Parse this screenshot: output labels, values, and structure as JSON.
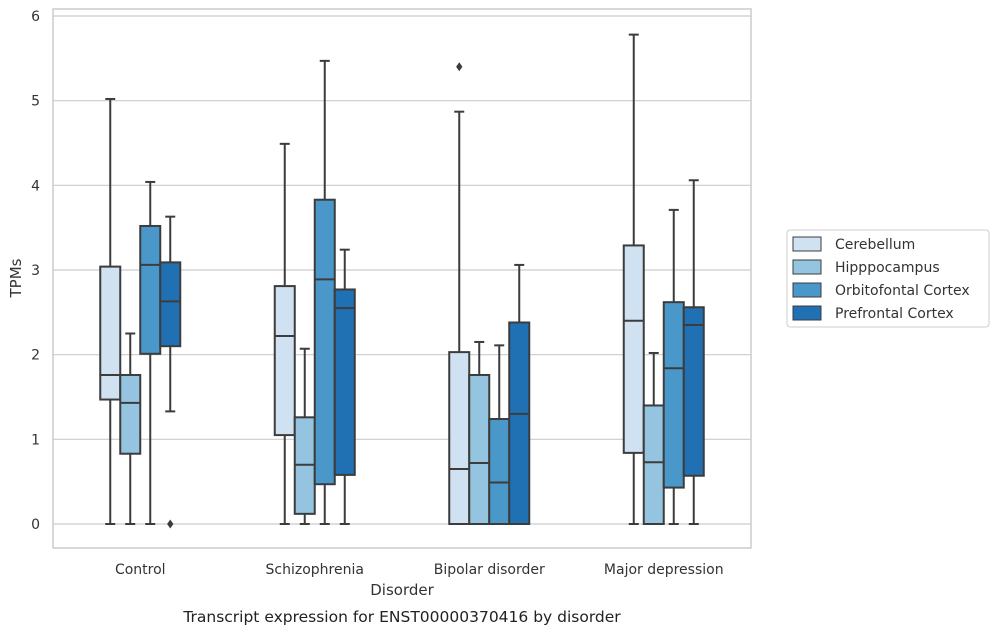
{
  "caption": "Transcript expression for ENST00000370416 by disorder",
  "chart_data": {
    "type": "boxplot",
    "xlabel": "Disorder",
    "ylabel": "TPMs",
    "ylim": [
      -0.28,
      6.1
    ],
    "yticks": [
      0,
      1,
      2,
      3,
      4,
      5,
      6
    ],
    "grid": "horizontal",
    "legend_position": "right",
    "categories": [
      "Control",
      "Schizophrenia",
      "Bipolar disorder",
      "Major depression"
    ],
    "series": [
      {
        "name": "Cerebellum",
        "color": "#d0e1f2",
        "boxes": [
          {
            "min": 0,
            "q1": 1.47,
            "median": 1.76,
            "q3": 3.04,
            "max": 5.02,
            "outliers": []
          },
          {
            "min": 0,
            "q1": 1.05,
            "median": 2.22,
            "q3": 2.81,
            "max": 4.49,
            "outliers": []
          },
          {
            "min": 0,
            "q1": 0,
            "median": 0.65,
            "q3": 2.03,
            "max": 4.87,
            "outliers": [
              5.4
            ]
          },
          {
            "min": 0,
            "q1": 0.84,
            "median": 2.4,
            "q3": 3.29,
            "max": 5.78,
            "outliers": []
          }
        ]
      },
      {
        "name": "Hipppocampus",
        "color": "#94c4df",
        "boxes": [
          {
            "min": 0,
            "q1": 0.83,
            "median": 1.43,
            "q3": 1.76,
            "max": 2.25,
            "outliers": []
          },
          {
            "min": 0,
            "q1": 0.12,
            "median": 0.7,
            "q3": 1.26,
            "max": 2.07,
            "outliers": []
          },
          {
            "min": 0,
            "q1": 0,
            "median": 0.72,
            "q3": 1.76,
            "max": 2.15,
            "outliers": []
          },
          {
            "min": 0,
            "q1": 0,
            "median": 0.73,
            "q3": 1.4,
            "max": 2.02,
            "outliers": []
          }
        ]
      },
      {
        "name": "Orbitofontal Cortex",
        "color": "#4a98c9",
        "boxes": [
          {
            "min": 0,
            "q1": 2.01,
            "median": 3.06,
            "q3": 3.52,
            "max": 4.04,
            "outliers": []
          },
          {
            "min": 0,
            "q1": 0.47,
            "median": 2.89,
            "q3": 3.83,
            "max": 5.47,
            "outliers": []
          },
          {
            "min": 0,
            "q1": 0,
            "median": 0.49,
            "q3": 1.24,
            "max": 2.11,
            "outliers": []
          },
          {
            "min": 0,
            "q1": 0.43,
            "median": 1.84,
            "q3": 2.62,
            "max": 3.71,
            "outliers": []
          }
        ]
      },
      {
        "name": "Prefrontal Cortex",
        "color": "#2070b4",
        "boxes": [
          {
            "min": 1.33,
            "q1": 2.1,
            "median": 2.63,
            "q3": 3.09,
            "max": 3.63,
            "outliers": [
              0
            ]
          },
          {
            "min": 0,
            "q1": 0.58,
            "median": 2.55,
            "q3": 2.77,
            "max": 3.24,
            "outliers": []
          },
          {
            "min": 0,
            "q1": 0,
            "median": 1.3,
            "q3": 2.38,
            "max": 3.06,
            "outliers": []
          },
          {
            "min": 0,
            "q1": 0.57,
            "median": 2.35,
            "q3": 2.56,
            "max": 4.06,
            "outliers": []
          }
        ]
      }
    ]
  }
}
